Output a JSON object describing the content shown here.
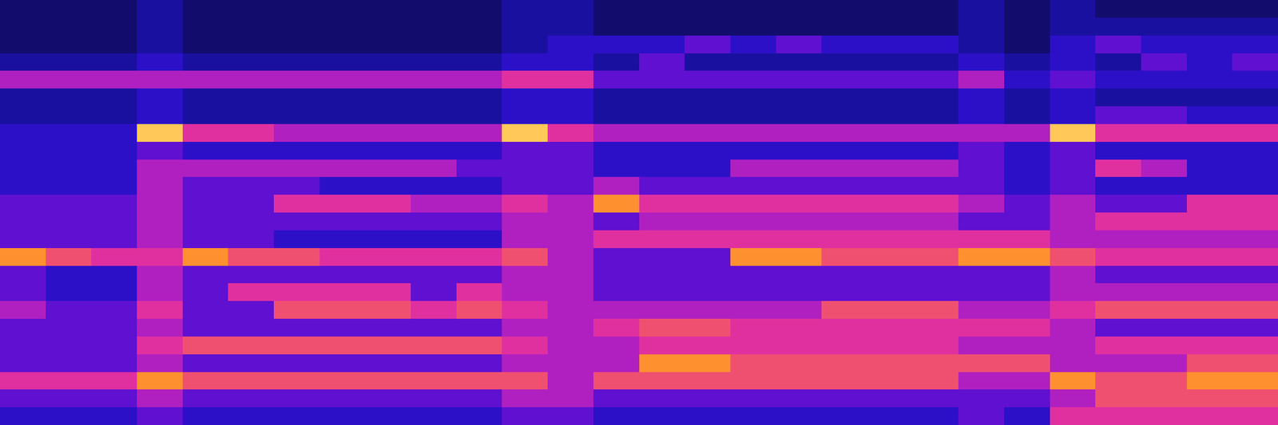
{
  "chart_data": {
    "type": "heatmap",
    "tick_labels": false,
    "zlim": [
      0,
      10
    ],
    "z": [
      [
        1,
        1,
        1,
        2,
        1,
        1,
        1,
        1,
        1,
        1,
        1,
        2,
        2,
        1,
        1,
        1,
        1,
        1,
        1,
        1,
        1,
        2,
        1,
        2,
        1,
        1,
        1,
        1
      ],
      [
        1,
        1,
        1,
        2,
        1,
        1,
        1,
        1,
        1,
        1,
        1,
        2,
        2,
        1,
        1,
        1,
        1,
        1,
        1,
        1,
        1,
        2,
        1,
        2,
        2,
        2,
        2,
        2
      ],
      [
        1,
        1,
        1,
        2,
        1,
        1,
        1,
        1,
        1,
        1,
        1,
        2,
        3,
        3,
        3,
        4,
        3,
        4,
        3,
        3,
        3,
        2,
        1,
        3,
        4,
        3,
        3,
        3
      ],
      [
        2,
        2,
        2,
        3,
        2,
        2,
        2,
        2,
        2,
        2,
        2,
        3,
        3,
        2,
        4,
        2,
        2,
        2,
        2,
        2,
        2,
        3,
        2,
        3,
        2,
        4,
        3,
        4
      ],
      [
        5,
        5,
        5,
        5,
        5,
        5,
        5,
        5,
        5,
        5,
        5,
        6,
        6,
        4,
        4,
        4,
        4,
        4,
        4,
        4,
        4,
        5,
        3,
        4,
        3,
        3,
        3,
        3
      ],
      [
        2,
        2,
        2,
        3,
        2,
        2,
        2,
        2,
        2,
        2,
        2,
        3,
        3,
        2,
        2,
        2,
        2,
        2,
        2,
        2,
        2,
        3,
        2,
        3,
        2,
        2,
        2,
        2
      ],
      [
        2,
        2,
        2,
        3,
        2,
        2,
        2,
        2,
        2,
        2,
        2,
        3,
        3,
        2,
        2,
        2,
        2,
        2,
        2,
        2,
        2,
        3,
        2,
        3,
        4,
        4,
        3,
        3
      ],
      [
        3,
        3,
        3,
        9,
        6,
        6,
        5,
        5,
        5,
        5,
        5,
        9,
        6,
        5,
        5,
        5,
        5,
        5,
        5,
        5,
        5,
        5,
        5,
        9,
        6,
        6,
        6,
        6
      ],
      [
        3,
        3,
        3,
        4,
        3,
        3,
        3,
        3,
        3,
        3,
        3,
        4,
        4,
        3,
        3,
        3,
        3,
        3,
        3,
        3,
        3,
        4,
        3,
        4,
        3,
        3,
        3,
        3
      ],
      [
        3,
        3,
        3,
        5,
        5,
        5,
        5,
        5,
        5,
        5,
        4,
        4,
        4,
        3,
        3,
        3,
        5,
        5,
        5,
        5,
        5,
        4,
        3,
        4,
        6,
        5,
        3,
        3
      ],
      [
        3,
        3,
        3,
        5,
        4,
        4,
        4,
        3,
        3,
        3,
        3,
        4,
        4,
        5,
        4,
        4,
        4,
        4,
        4,
        4,
        4,
        4,
        3,
        4,
        3,
        3,
        3,
        3
      ],
      [
        4,
        4,
        4,
        5,
        4,
        4,
        6,
        6,
        6,
        5,
        5,
        6,
        5,
        8,
        6,
        6,
        6,
        6,
        6,
        6,
        6,
        5,
        4,
        5,
        4,
        4,
        6,
        6
      ],
      [
        4,
        4,
        4,
        5,
        4,
        4,
        4,
        4,
        4,
        4,
        4,
        5,
        5,
        4,
        5,
        5,
        5,
        5,
        5,
        5,
        5,
        4,
        4,
        5,
        6,
        6,
        6,
        6
      ],
      [
        4,
        4,
        4,
        5,
        4,
        4,
        3,
        3,
        3,
        3,
        3,
        5,
        5,
        6,
        6,
        6,
        6,
        6,
        6,
        6,
        6,
        6,
        6,
        5,
        5,
        5,
        5,
        5
      ],
      [
        8,
        7,
        6,
        6,
        8,
        7,
        7,
        6,
        6,
        6,
        6,
        7,
        5,
        4,
        4,
        4,
        8,
        8,
        7,
        7,
        7,
        8,
        8,
        7,
        6,
        6,
        6,
        6
      ],
      [
        4,
        3,
        3,
        5,
        4,
        4,
        4,
        4,
        4,
        4,
        4,
        5,
        5,
        4,
        4,
        4,
        4,
        4,
        4,
        4,
        4,
        4,
        4,
        5,
        4,
        4,
        4,
        4
      ],
      [
        4,
        3,
        3,
        5,
        4,
        6,
        6,
        6,
        6,
        4,
        6,
        5,
        5,
        4,
        4,
        4,
        4,
        4,
        4,
        4,
        4,
        4,
        4,
        5,
        5,
        5,
        5,
        5
      ],
      [
        5,
        4,
        4,
        6,
        4,
        4,
        7,
        7,
        7,
        6,
        7,
        6,
        5,
        5,
        5,
        5,
        5,
        5,
        7,
        7,
        7,
        5,
        5,
        6,
        7,
        7,
        7,
        7
      ],
      [
        4,
        4,
        4,
        5,
        4,
        4,
        4,
        4,
        4,
        4,
        4,
        5,
        5,
        6,
        7,
        7,
        6,
        6,
        6,
        6,
        6,
        6,
        6,
        5,
        4,
        4,
        4,
        4
      ],
      [
        4,
        4,
        4,
        6,
        7,
        7,
        7,
        7,
        7,
        7,
        7,
        6,
        5,
        5,
        6,
        6,
        6,
        6,
        6,
        6,
        6,
        5,
        5,
        5,
        6,
        6,
        6,
        6
      ],
      [
        4,
        4,
        4,
        5,
        4,
        4,
        4,
        4,
        4,
        4,
        4,
        5,
        5,
        5,
        8,
        8,
        7,
        7,
        7,
        7,
        7,
        7,
        7,
        5,
        5,
        5,
        7,
        7
      ],
      [
        6,
        6,
        6,
        8,
        7,
        7,
        7,
        7,
        7,
        7,
        7,
        7,
        5,
        7,
        7,
        7,
        7,
        7,
        7,
        7,
        7,
        5,
        5,
        8,
        7,
        7,
        8,
        8
      ],
      [
        4,
        4,
        4,
        5,
        4,
        4,
        4,
        4,
        4,
        4,
        4,
        5,
        5,
        4,
        4,
        4,
        4,
        4,
        4,
        4,
        4,
        4,
        4,
        5,
        7,
        7,
        7,
        7
      ],
      [
        3,
        3,
        3,
        4,
        3,
        3,
        3,
        3,
        3,
        3,
        3,
        4,
        4,
        3,
        3,
        3,
        3,
        3,
        3,
        3,
        3,
        4,
        3,
        6,
        6,
        6,
        6,
        6
      ]
    ]
  }
}
